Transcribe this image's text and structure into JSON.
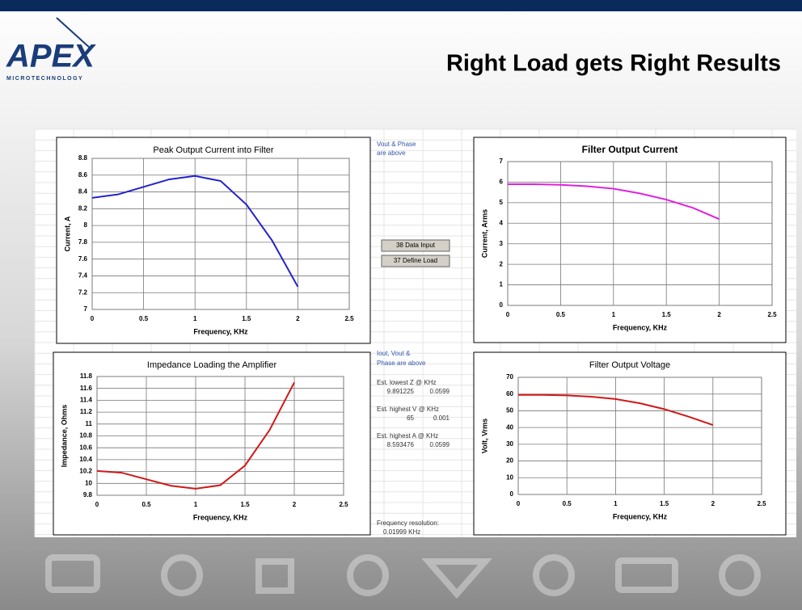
{
  "header": {
    "logo": "APEX",
    "logo_sub": "MICROTECHNOLOGY",
    "title": "Right Load gets Right Results"
  },
  "sheet": {
    "note_top": [
      "Vout & Phase",
      "are above"
    ],
    "buttons": [
      "38 Data Input",
      "37 Define Load"
    ],
    "note_mid": [
      "Iout, Vout &",
      "Phase are above"
    ],
    "estimates": [
      {
        "label": "Est. lowest Z @ KHz",
        "a": "9.891225",
        "b": "0.0599"
      },
      {
        "label": "Est. highest V @ KHz",
        "a": "65",
        "b": "0.001"
      },
      {
        "label": "Est. highest A @ KHz",
        "a": "8.593476",
        "b": "0.0599"
      }
    ],
    "resolution": [
      "Frequency resolution:",
      "0.01999 KHz"
    ]
  },
  "chart_data": [
    {
      "type": "line",
      "title": "Peak Output Current into Filter",
      "x_label": "Frequency, KHz",
      "y_label": "Current, A",
      "color": "#2222cc",
      "x": [
        0,
        0.25,
        0.5,
        0.75,
        1,
        1.25,
        1.5,
        1.75,
        2
      ],
      "values": [
        8.33,
        8.37,
        8.46,
        8.55,
        8.59,
        8.53,
        8.25,
        7.82,
        7.27
      ],
      "xlim": [
        0,
        2.5
      ],
      "xticks": [
        0,
        0.5,
        1,
        1.5,
        2,
        2.5
      ],
      "ylim": [
        7,
        8.8
      ],
      "yticks": [
        7,
        7.2,
        7.4,
        7.6,
        7.8,
        8,
        8.2,
        8.4,
        8.6,
        8.8
      ],
      "grid": true
    },
    {
      "type": "line",
      "title": "Filter Output Current",
      "x_label": "Frequency, KHz",
      "y_label": "Current, Arms",
      "color": "#e020e0",
      "x": [
        0,
        0.25,
        0.5,
        0.75,
        1,
        1.25,
        1.5,
        1.75,
        2
      ],
      "values": [
        5.9,
        5.9,
        5.87,
        5.8,
        5.68,
        5.45,
        5.15,
        4.75,
        4.2
      ],
      "xlim": [
        0,
        2.5
      ],
      "xticks": [
        0,
        0.5,
        1,
        1.5,
        2,
        2.5
      ],
      "ylim": [
        0,
        7
      ],
      "yticks": [
        0,
        1,
        2,
        3,
        4,
        5,
        6,
        7
      ],
      "grid": true
    },
    {
      "type": "line",
      "title": "Impedance Loading the Amplifier",
      "x_label": "Frequency, KHz",
      "y_label": "Impedance, Ohms",
      "color": "#d01818",
      "x": [
        0,
        0.25,
        0.5,
        0.75,
        1,
        1.25,
        1.5,
        1.75,
        2
      ],
      "values": [
        10.21,
        10.18,
        10.07,
        9.96,
        9.91,
        9.97,
        10.3,
        10.9,
        11.7
      ],
      "xlim": [
        0,
        2.5
      ],
      "xticks": [
        0,
        0.5,
        1,
        1.5,
        2,
        2.5
      ],
      "ylim": [
        9.8,
        11.8
      ],
      "yticks": [
        9.8,
        10,
        10.2,
        10.4,
        10.6,
        10.8,
        11,
        11.2,
        11.4,
        11.6,
        11.8
      ],
      "grid": true
    },
    {
      "type": "line",
      "title": "Filter Output Voltage",
      "x_label": "Frequency, KHz",
      "y_label": "Volt, Vrms",
      "color": "#d01818",
      "x": [
        0,
        0.25,
        0.5,
        0.75,
        1,
        1.25,
        1.5,
        1.75,
        2
      ],
      "values": [
        59.5,
        59.5,
        59.2,
        58.4,
        57,
        54.5,
        51,
        46.5,
        41.5
      ],
      "xlim": [
        0,
        2.5
      ],
      "xticks": [
        0,
        0.5,
        1,
        1.5,
        2,
        2.5
      ],
      "ylim": [
        0,
        70
      ],
      "yticks": [
        0,
        10,
        20,
        30,
        40,
        50,
        60,
        70
      ],
      "grid": true
    }
  ]
}
